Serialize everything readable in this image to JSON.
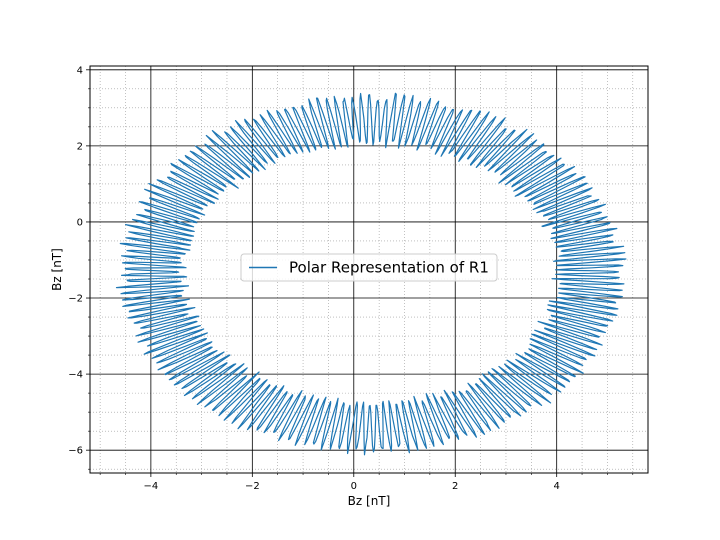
{
  "chart_data": {
    "type": "line",
    "title": "",
    "xlabel": "Bz  [nT]",
    "ylabel": "Bz  [nT]",
    "xlim": [
      -5.2,
      5.8
    ],
    "ylim": [
      -6.6,
      4.1
    ],
    "xticks": [
      -4,
      -2,
      0,
      2,
      4
    ],
    "yticks": [
      -6,
      -4,
      -2,
      0,
      2,
      4
    ],
    "xtick_labels": [
      "−4",
      "−2",
      "0",
      "2",
      "4"
    ],
    "ytick_labels": [
      "−6",
      "−4",
      "−2",
      "0",
      "2",
      "4"
    ],
    "grid": {
      "major": true,
      "minor": true,
      "major_color": "#000000",
      "minor_color": "#999999",
      "minor_style": "dotted"
    },
    "legend": {
      "placement": "center",
      "entries": [
        "Polar Representation of R1"
      ]
    },
    "series": [
      {
        "name": "Polar Representation of R1",
        "color": "#1f77b4",
        "shape": "noisy ring",
        "center": [
          0.35,
          -1.35
        ],
        "radius_x": 4.3,
        "radius_y": 4.05,
        "spike_range_nT": [
          0.2,
          0.75
        ],
        "points": 1600,
        "oscillations": 180
      }
    ]
  }
}
